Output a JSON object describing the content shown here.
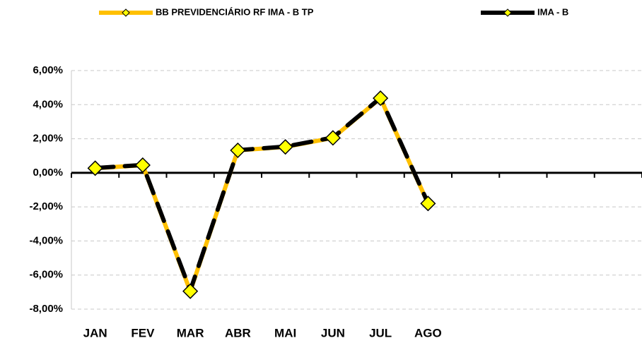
{
  "chart_data": {
    "type": "line",
    "categories": [
      "JAN",
      "FEV",
      "MAR",
      "ABR",
      "MAI",
      "JUN",
      "JUL",
      "AGO",
      null,
      null,
      null,
      null
    ],
    "series": [
      {
        "name": "BB PREVIDENCIÁRIO RF IMA - B TP",
        "color": "#ffc000",
        "values": [
          0.27,
          0.45,
          -6.95,
          1.32,
          1.52,
          2.05,
          4.38,
          -1.8,
          null,
          null,
          null,
          null
        ]
      },
      {
        "name": "IMA - B",
        "color": "#000000",
        "values": [
          0.28,
          0.46,
          -6.9,
          1.33,
          1.54,
          2.07,
          4.4,
          -1.78,
          null,
          null,
          null,
          null
        ]
      }
    ],
    "ylim": [
      -8,
      6
    ],
    "yticks": [
      {
        "value": -8,
        "label": "-8,00%"
      },
      {
        "value": -6,
        "label": "-6,00%"
      },
      {
        "value": -4,
        "label": "-4,00%"
      },
      {
        "value": -2,
        "label": "-2,00%"
      },
      {
        "value": 0,
        "label": "0,00%"
      },
      {
        "value": 2,
        "label": "2,00%"
      },
      {
        "value": 4,
        "label": "4,00%"
      },
      {
        "value": 6,
        "label": "6,00%"
      }
    ],
    "grid": true
  }
}
